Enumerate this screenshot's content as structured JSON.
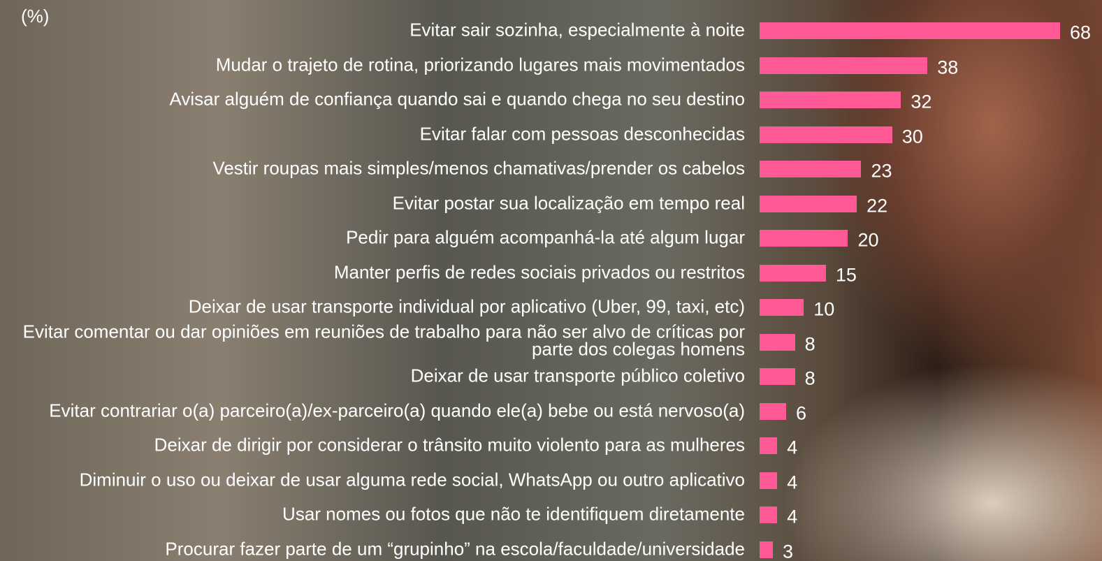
{
  "chart_data": {
    "type": "bar",
    "orientation": "horizontal",
    "unit_label": "(%)",
    "color": "#ff5a96",
    "categories": [
      "Evitar sair sozinha, especialmente à noite",
      "Mudar o trajeto de rotina, priorizando lugares mais movimentados",
      "Avisar alguém de confiança quando sai e quando chega no seu destino",
      "Evitar falar com pessoas desconhecidas",
      "Vestir roupas mais simples/menos chamativas/prender os cabelos",
      "Evitar postar sua localização em tempo real",
      "Pedir para alguém acompanhá-la até algum lugar",
      "Manter perfis de redes sociais privados ou restritos",
      "Deixar de usar transporte individual por aplicativo (Uber, 99, taxi, etc)",
      "Evitar comentar ou dar opiniões em reuniões de trabalho para não ser alvo de críticas por parte dos colegas homens",
      "Deixar de usar transporte público coletivo",
      "Evitar contrariar o(a) parceiro(a)/ex-parceiro(a) quando ele(a) bebe ou está nervoso(a)",
      "Deixar de dirigir por considerar o trânsito muito violento para as mulheres",
      "Diminuir o uso ou deixar de usar alguma rede social, WhatsApp ou outro aplicativo",
      "Usar nomes ou fotos que não te identifiquem diretamente",
      "Procurar fazer parte de um “grupinho” na escola/faculdade/universidade"
    ],
    "values": [
      68,
      38,
      32,
      30,
      23,
      22,
      20,
      15,
      10,
      8,
      8,
      6,
      4,
      4,
      4,
      3
    ]
  }
}
